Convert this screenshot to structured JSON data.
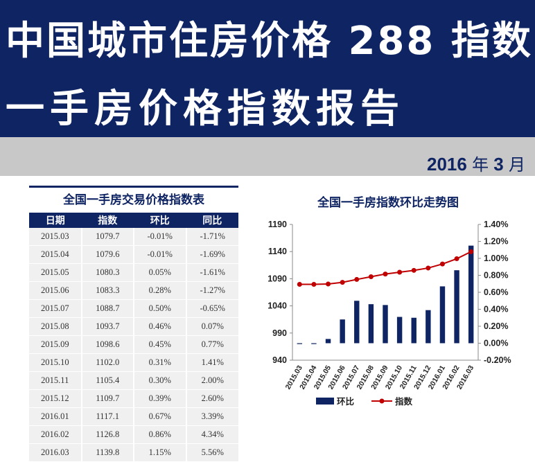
{
  "header": {
    "title_line1": "中国城市住房价格 288 指数",
    "title_line2": "一手房价格指数报告",
    "date_year": "2016",
    "date_year_unit": "年",
    "date_month": "3",
    "date_month_unit": "月",
    "banner_color": "#0f2463",
    "bar_color": "#c8c8c8"
  },
  "table": {
    "title": "全国一手房交易价格指数表",
    "columns": [
      "日期",
      "指数",
      "环比",
      "同比"
    ],
    "rows": [
      [
        "2015.03",
        "1079.7",
        "-0.01%",
        "-1.71%"
      ],
      [
        "2015.04",
        "1079.6",
        "-0.01%",
        "-1.69%"
      ],
      [
        "2015.05",
        "1080.3",
        "0.05%",
        "-1.61%"
      ],
      [
        "2015.06",
        "1083.3",
        "0.28%",
        "-1.27%"
      ],
      [
        "2015.07",
        "1088.7",
        "0.50%",
        "-0.65%"
      ],
      [
        "2015.08",
        "1093.7",
        "0.46%",
        "0.07%"
      ],
      [
        "2015.09",
        "1098.6",
        "0.45%",
        "0.77%"
      ],
      [
        "2015.10",
        "1102.0",
        "0.31%",
        "1.41%"
      ],
      [
        "2015.11",
        "1105.4",
        "0.30%",
        "2.00%"
      ],
      [
        "2015.12",
        "1109.7",
        "0.39%",
        "2.60%"
      ],
      [
        "2016.01",
        "1117.1",
        "0.67%",
        "3.39%"
      ],
      [
        "2016.02",
        "1126.8",
        "0.86%",
        "4.34%"
      ],
      [
        "2016.03",
        "1139.8",
        "1.15%",
        "5.56%"
      ]
    ]
  },
  "chart_data": {
    "type": "bar",
    "title": "全国一手房指数环比走势图",
    "categories": [
      "2015.03",
      "2015.04",
      "2015.05",
      "2015.06",
      "2015.07",
      "2015.08",
      "2015.09",
      "2015.10",
      "2015.11",
      "2015.12",
      "2016.01",
      "2016.02",
      "2016.03"
    ],
    "series": [
      {
        "name": "环比",
        "kind": "bar",
        "axis": "right",
        "color": "#0f2463",
        "values": [
          -0.01,
          -0.01,
          0.05,
          0.28,
          0.5,
          0.46,
          0.45,
          0.31,
          0.3,
          0.39,
          0.67,
          0.86,
          1.15
        ]
      },
      {
        "name": "指数",
        "kind": "line",
        "axis": "left",
        "color": "#c00000",
        "values": [
          1079.7,
          1079.6,
          1080.3,
          1083.3,
          1088.7,
          1093.7,
          1098.6,
          1102.0,
          1105.4,
          1109.7,
          1117.1,
          1126.8,
          1139.8
        ]
      }
    ],
    "y_left": {
      "min": 940,
      "max": 1190,
      "ticks": [
        "940",
        "990",
        "1040",
        "1090",
        "1140",
        "1190"
      ],
      "tick_values": [
        940,
        990,
        1040,
        1090,
        1140,
        1190
      ]
    },
    "y_right": {
      "min": -0.2,
      "max": 1.4,
      "ticks": [
        "-0.20%",
        "0.00%",
        "0.20%",
        "0.40%",
        "0.60%",
        "0.80%",
        "1.00%",
        "1.20%",
        "1.40%"
      ],
      "tick_values": [
        -0.2,
        0,
        0.2,
        0.4,
        0.6,
        0.8,
        1.0,
        1.2,
        1.4
      ]
    },
    "legend_position": "bottom",
    "grid": false
  }
}
